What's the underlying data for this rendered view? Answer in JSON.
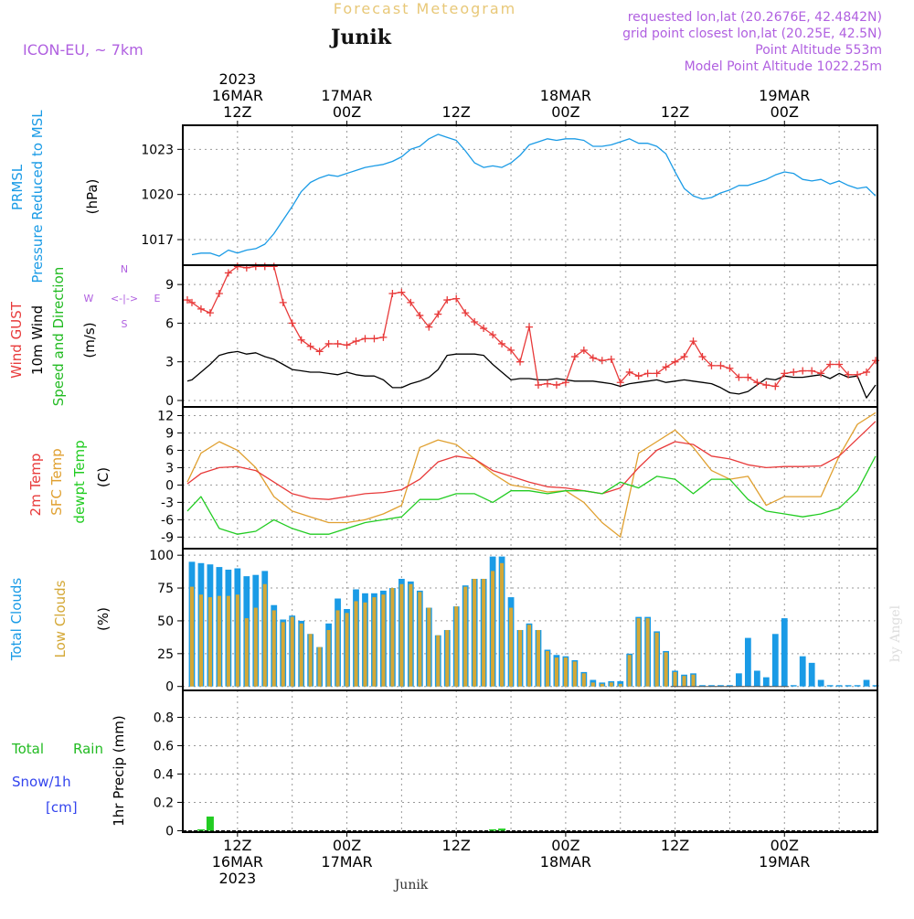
{
  "header": {
    "title": "Forecast Meteogram",
    "location": "Junik",
    "model": "ICON-EU, ~ 7km",
    "requested": "requested lon,lat (20.2676E, 42.4842N)",
    "gridpoint": "grid point closest lon,lat (20.25E, 42.5N)",
    "altitude": "Point Altitude 553m",
    "model_altitude": "Model Point Altitude 1022.25m",
    "watermark": "by Angel",
    "footer_location": "Junik"
  },
  "time_axis": {
    "top_year": "2023",
    "top_labels": [
      {
        "h": 12,
        "l1": "16MAR",
        "l2": "12Z"
      },
      {
        "h": 24,
        "l1": "17MAR",
        "l2": "00Z"
      },
      {
        "h": 36,
        "l1": "",
        "l2": "12Z"
      },
      {
        "h": 48,
        "l1": "18MAR",
        "l2": "00Z"
      },
      {
        "h": 60,
        "l1": "",
        "l2": "12Z"
      },
      {
        "h": 72,
        "l1": "19MAR",
        "l2": "00Z"
      }
    ],
    "bottom_labels": [
      {
        "h": 12,
        "l1": "12Z",
        "l2": "16MAR",
        "l3": "2023"
      },
      {
        "h": 24,
        "l1": "00Z",
        "l2": "17MAR",
        "l3": ""
      },
      {
        "h": 36,
        "l1": "12Z",
        "l2": "",
        "l3": ""
      },
      {
        "h": 48,
        "l1": "00Z",
        "l2": "18MAR",
        "l3": ""
      },
      {
        "h": 60,
        "l1": "12Z",
        "l2": "",
        "l3": ""
      },
      {
        "h": 72,
        "l1": "00Z",
        "l2": "19MAR",
        "l3": ""
      }
    ],
    "h_range": [
      6.0,
      82.2
    ]
  },
  "panels": {
    "pressure": {
      "label1": "PRMSL",
      "label2": "Pressure Reduced to MSL",
      "unit": "(hPa)",
      "color": "#1a9be6"
    },
    "wind": {
      "label_gust": "Wind GUST",
      "label_wind": "10m Wind",
      "label_dir": "Speed and Direction",
      "unit": "(m/s)",
      "compass": {
        "n": "N",
        "s": "S",
        "w": "W",
        "e": "E",
        "arrows": "<-|->"
      },
      "gust_color": "#e83a3a",
      "wind_color": "#000000",
      "dir_color": "#22bb22"
    },
    "temp": {
      "label_t2m": "2m Temp",
      "label_sfc": "SFC Temp",
      "label_dew": "dewpt Temp",
      "unit": "(C)",
      "t2m_color": "#e83a3a",
      "sfc_color": "#e0a030",
      "dew_color": "#22cc22"
    },
    "clouds": {
      "label_total": "Total Clouds",
      "label_low": "Low Clouds",
      "unit": "(%)",
      "total_color": "#1a9be6",
      "low_color": "#d4a836"
    },
    "precip": {
      "label_rain1": "Total",
      "label_rain2": "Rain",
      "label_snow": "Snow/1h",
      "label_cm": "[cm]",
      "axis_label": "1hr Precip (mm)",
      "rain_color": "#22cc22",
      "snow_color": "#3344ee"
    }
  },
  "chart_data": [
    {
      "type": "line",
      "name": "PRMSL",
      "ylabel": "(hPa)",
      "ylim": [
        1015.3,
        1024.6
      ],
      "yticks": [
        1017,
        1020,
        1023
      ],
      "x_hours": [
        7,
        8,
        9,
        10,
        11,
        12,
        13,
        14,
        15,
        16,
        17,
        18,
        19,
        20,
        21,
        22,
        23,
        24,
        25,
        26,
        27,
        28,
        29,
        30,
        31,
        32,
        33,
        34,
        35,
        36,
        37,
        38,
        39,
        40,
        41,
        42,
        43,
        44,
        45,
        46,
        47,
        48,
        49,
        50,
        51,
        52,
        53,
        54,
        55,
        56,
        57,
        58,
        59,
        60,
        61,
        62,
        63,
        64,
        65,
        66,
        67,
        68,
        69,
        70,
        71,
        72,
        73,
        74,
        75,
        76,
        77,
        78,
        79,
        80,
        81,
        82
      ],
      "values": [
        1016.0,
        1016.1,
        1016.1,
        1015.9,
        1016.3,
        1016.1,
        1016.3,
        1016.4,
        1016.7,
        1017.4,
        1018.3,
        1019.2,
        1020.2,
        1020.8,
        1021.1,
        1021.3,
        1021.2,
        1021.4,
        1021.6,
        1021.8,
        1021.9,
        1022.0,
        1022.2,
        1022.5,
        1023.0,
        1023.2,
        1023.7,
        1024.0,
        1023.8,
        1023.6,
        1022.9,
        1022.1,
        1021.8,
        1021.9,
        1021.8,
        1022.1,
        1022.6,
        1023.3,
        1023.5,
        1023.7,
        1023.6,
        1023.7,
        1023.7,
        1023.6,
        1023.2,
        1023.2,
        1023.3,
        1023.5,
        1023.7,
        1023.4,
        1023.4,
        1023.2,
        1022.7,
        1021.5,
        1020.4,
        1019.9,
        1019.7,
        1019.8,
        1020.1,
        1020.3,
        1020.6,
        1020.6,
        1020.8,
        1021.0,
        1021.3,
        1021.5,
        1021.4,
        1021.0,
        1020.9,
        1021.0,
        1020.7,
        1020.9,
        1020.6,
        1020.4,
        1020.5,
        1019.9
      ]
    },
    {
      "type": "line",
      "name": "Wind",
      "ylabel": "(m/s)",
      "ylim": [
        -0.5,
        10.5
      ],
      "yticks": [
        0,
        3,
        6,
        9
      ],
      "x_hours": [
        6.5,
        7,
        8,
        9,
        10,
        11,
        12,
        13,
        14,
        15,
        16,
        17,
        18,
        19,
        20,
        21,
        22,
        23,
        24,
        25,
        26,
        27,
        28,
        29,
        30,
        31,
        32,
        33,
        34,
        35,
        36,
        37,
        38,
        39,
        40,
        41,
        42,
        43,
        44,
        45,
        46,
        47,
        48,
        49,
        50,
        51,
        52,
        53,
        54,
        55,
        56,
        57,
        58,
        59,
        60,
        61,
        62,
        63,
        64,
        65,
        66,
        67,
        68,
        69,
        70,
        71,
        72,
        73,
        74,
        75,
        76,
        77,
        78,
        79,
        80,
        81,
        82
      ],
      "gust": [
        7.8,
        7.6,
        7.1,
        6.8,
        8.3,
        9.9,
        10.4,
        10.3,
        10.4,
        10.4,
        10.4,
        7.6,
        6.0,
        4.7,
        4.2,
        3.8,
        4.4,
        4.4,
        4.3,
        4.6,
        4.8,
        4.8,
        4.9,
        8.3,
        8.4,
        7.6,
        6.6,
        5.7,
        6.7,
        7.8,
        7.9,
        6.8,
        6.1,
        5.6,
        5.1,
        4.4,
        3.9,
        3.0,
        5.7,
        1.2,
        1.3,
        1.2,
        1.4,
        3.4,
        3.9,
        3.3,
        3.1,
        3.2,
        1.4,
        2.2,
        1.9,
        2.1,
        2.1,
        2.6,
        3.0,
        3.4,
        4.6,
        3.4,
        2.7,
        2.7,
        2.5,
        1.8,
        1.8,
        1.4,
        1.2,
        1.1,
        2.1,
        2.2,
        2.3,
        2.3,
        2.1,
        2.8,
        2.8,
        2.0,
        2.0,
        2.2,
        3.1,
        4.8,
        4.0
      ],
      "wind": [
        1.5,
        1.6,
        2.2,
        2.8,
        3.5,
        3.7,
        3.8,
        3.6,
        3.7,
        3.4,
        3.2,
        2.8,
        2.4,
        2.3,
        2.2,
        2.2,
        2.1,
        2.0,
        2.2,
        2.0,
        1.9,
        1.9,
        1.6,
        1.0,
        1.0,
        1.3,
        1.5,
        1.8,
        2.4,
        3.5,
        3.6,
        3.6,
        3.6,
        3.5,
        2.8,
        2.2,
        1.6,
        1.7,
        1.7,
        1.6,
        1.6,
        1.7,
        1.6,
        1.5,
        1.5,
        1.5,
        1.4,
        1.3,
        1.1,
        1.3,
        1.4,
        1.5,
        1.6,
        1.4,
        1.5,
        1.6,
        1.5,
        1.4,
        1.3,
        1.0,
        0.6,
        0.5,
        0.7,
        1.2,
        1.7,
        1.6,
        1.9,
        1.8,
        1.8,
        1.9,
        2.0,
        1.7,
        2.1,
        1.8,
        1.9,
        0.2,
        1.2,
        1.9,
        2.2
      ]
    },
    {
      "type": "line",
      "name": "Temperature",
      "ylabel": "(C)",
      "ylim": [
        -11,
        13.5
      ],
      "yticks": [
        -9,
        -6,
        -3,
        0,
        3,
        6,
        9,
        12
      ],
      "x_hours": [
        6.5,
        8,
        10,
        12,
        14,
        16,
        18,
        20,
        22,
        24,
        26,
        28,
        30,
        32,
        34,
        36,
        38,
        40,
        42,
        44,
        46,
        48,
        50,
        52,
        54,
        56,
        58,
        60,
        62,
        64,
        66,
        68,
        70,
        72,
        74,
        76,
        78,
        80,
        82
      ],
      "t2m": [
        0.2,
        2.0,
        3.0,
        3.2,
        2.5,
        0.5,
        -1.5,
        -2.3,
        -2.5,
        -2.0,
        -1.5,
        -1.3,
        -0.8,
        1.0,
        4.0,
        5.0,
        4.5,
        2.5,
        1.5,
        0.5,
        -0.3,
        -0.5,
        -1.0,
        -1.5,
        -0.5,
        3.0,
        6.0,
        7.5,
        7.0,
        5.0,
        4.5,
        3.5,
        3.0,
        3.2,
        3.2,
        3.3,
        5.0,
        8.0,
        11.0
      ],
      "sfc": [
        0.5,
        5.5,
        7.5,
        6.0,
        3.0,
        -2.0,
        -4.5,
        -5.5,
        -6.5,
        -6.5,
        -6.0,
        -5.0,
        -3.5,
        6.5,
        7.8,
        7.0,
        4.5,
        2.0,
        0.0,
        -0.5,
        -1.2,
        -1.0,
        -3.0,
        -6.5,
        -9.0,
        5.5,
        7.5,
        9.5,
        6.5,
        2.5,
        1.0,
        1.5,
        -3.5,
        -2.0,
        -2.0,
        -2.0,
        5.0,
        10.5,
        12.5
      ],
      "dewpt": [
        -4.5,
        -2.0,
        -7.5,
        -8.5,
        -8.0,
        -6.0,
        -7.5,
        -8.5,
        -8.5,
        -7.5,
        -6.5,
        -6.0,
        -5.5,
        -2.5,
        -2.5,
        -1.5,
        -1.5,
        -3.0,
        -1.0,
        -1.0,
        -1.5,
        -1.0,
        -1.0,
        -1.5,
        0.5,
        -0.5,
        1.5,
        1.0,
        -1.5,
        1.0,
        1.0,
        -2.5,
        -4.5,
        -5.0,
        -5.5,
        -5.0,
        -4.0,
        -1.0,
        5.0
      ]
    },
    {
      "type": "bar",
      "name": "Clouds",
      "ylabel": "(%)",
      "ylim": [
        -3,
        105
      ],
      "yticks": [
        0,
        25,
        50,
        75,
        100
      ],
      "x_hours": [
        7,
        8,
        9,
        10,
        11,
        12,
        13,
        14,
        15,
        16,
        17,
        18,
        19,
        20,
        21,
        22,
        23,
        24,
        25,
        26,
        27,
        28,
        29,
        30,
        31,
        32,
        33,
        34,
        35,
        36,
        37,
        38,
        39,
        40,
        41,
        42,
        43,
        44,
        45,
        46,
        47,
        48,
        49,
        50,
        51,
        52,
        53,
        54,
        55,
        56,
        57,
        58,
        59,
        60,
        61,
        62,
        63,
        64,
        65,
        66,
        67,
        68,
        69,
        70,
        71,
        72,
        73,
        74,
        75,
        76,
        77,
        78,
        79,
        80,
        81,
        82
      ],
      "total": [
        95,
        94,
        93,
        91,
        89,
        90,
        84,
        85,
        88,
        62,
        51,
        54,
        50,
        40,
        30,
        48,
        67,
        59,
        74,
        71,
        71,
        73,
        75,
        82,
        80,
        73,
        60,
        39,
        43,
        61,
        77,
        82,
        82,
        99,
        99,
        68,
        43,
        48,
        43,
        28,
        24,
        23,
        20,
        11,
        5,
        3,
        4,
        4,
        25,
        53,
        53,
        42,
        27,
        12,
        9,
        10,
        1,
        1,
        1,
        1,
        10,
        37,
        12,
        7,
        40,
        52,
        1,
        23,
        18,
        5,
        1,
        1,
        1,
        1,
        5,
        1
      ],
      "low": [
        76,
        70,
        68,
        69,
        69,
        70,
        52,
        60,
        78,
        58,
        49,
        53,
        48,
        40,
        30,
        43,
        58,
        56,
        65,
        64,
        68,
        70,
        75,
        78,
        78,
        72,
        60,
        39,
        43,
        61,
        76,
        82,
        82,
        88,
        94,
        60,
        43,
        47,
        43,
        27,
        22,
        22,
        19,
        10,
        3,
        2,
        3,
        2,
        24,
        52,
        52,
        41,
        26,
        11,
        8,
        9,
        0,
        0,
        0,
        0,
        0,
        0,
        0,
        0,
        0,
        0,
        0,
        0,
        0,
        0,
        0,
        0,
        0,
        0,
        0,
        0
      ]
    },
    {
      "type": "bar",
      "name": "Precipitation",
      "ylabel": "1hr Precip (mm)",
      "ylim": [
        -0.01,
        0.99
      ],
      "yticks": [
        0,
        0.2,
        0.4,
        0.6,
        0.8
      ],
      "x_hours": [
        8,
        9,
        40,
        41
      ],
      "rain": [
        0.01,
        0.1,
        0.01,
        0.015
      ]
    }
  ]
}
